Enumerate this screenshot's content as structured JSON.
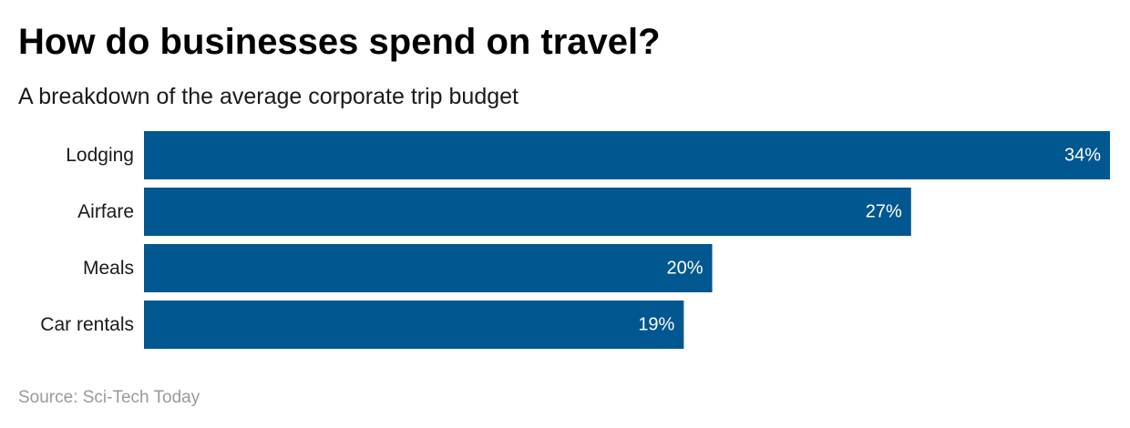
{
  "header": {
    "title": "How do businesses spend on travel?",
    "subtitle": "A breakdown of the average corporate trip budget"
  },
  "footer": {
    "source": "Source: Sci-Tech Today"
  },
  "colors": {
    "bar": "#01578f",
    "bar_label": "#ffffff",
    "category_label": "#1a1a1a"
  },
  "chart_data": {
    "type": "bar",
    "orientation": "horizontal",
    "title": "How do businesses spend on travel?",
    "subtitle": "A breakdown of the average corporate trip budget",
    "categories": [
      "Lodging",
      "Airfare",
      "Meals",
      "Car rentals"
    ],
    "values": [
      34,
      27,
      20,
      19
    ],
    "value_labels": [
      "34%",
      "27%",
      "20%",
      "19%"
    ],
    "unit": "%",
    "xlim": [
      0,
      34
    ],
    "grid": false,
    "legend": "none",
    "source": "Source: Sci-Tech Today"
  }
}
